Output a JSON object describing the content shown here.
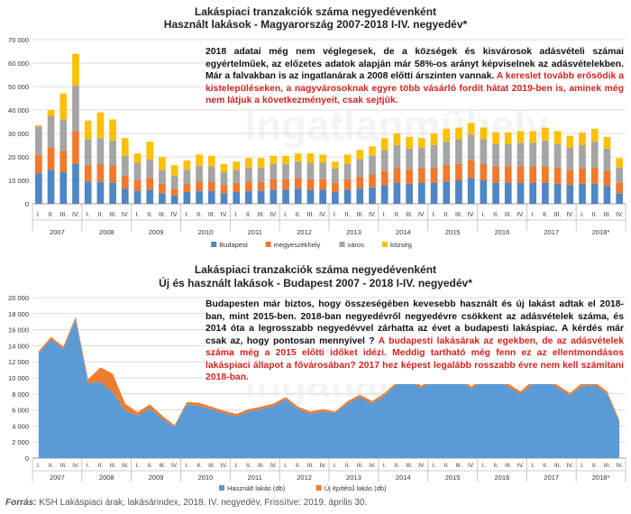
{
  "top": {
    "title_line1": "Lakáspiaci tranzakciók száma negyedévenként",
    "title_line2": "Használt lakások - Magyarország 2007-2018 I-IV. negyedév*",
    "watermark": "Ingatlanműhely",
    "note_black": "2018 adatai még nem véglegesek, de a községek és kisvárosok adásvételi számai egyértelműek, az előzetes adatok alapján már 58%-os arányt képviselnek az adásvételekben. Már a falvakban is az ingatlanárak a 2008 előtti árszinten vannak.",
    "note_red": " A kereslet tovább erősödik a kistelepüléseken, a nagyvárosoknak egyre több vásárló fordít hátat 2019-ben is, aminek még nem látjuk a következményeit, csak sejtjük."
  },
  "bottom": {
    "title_line1": "Lakáspiaci tranzakciók száma negyedévenként",
    "title_line2": "Új és használt lakások - Budapest 2007 - 2018 I-IV. negyedév*",
    "watermark": "Ingatlanműhely",
    "note_black": "Budapesten már biztos, hogy összeségében kevesebb használt és új lakást adtak el 2018-ban, mint 2015-ben. 2018-ban negyedévről negyedévre csökkent az adásvételek száma, és 2014 óta a legrosszabb negyedévvel zárhatta az évet a budapesti lakáspiac. A kérdés már csak az, hogy pontosan mennyivel ?",
    "note_red": " A budapesti lakásárak az egekben, de az adásvételek száma még a 2015 előtti időket idézi. Meddig tartható még fenn ez az ellentmondásos lakáspiaci állapot a fővárosában? 2017 hez képest legalább rosszabb évre nem kell számítani 2018-ban."
  },
  "source": {
    "prefix": "Forrás:",
    "text": " KSH Lakáspiaci árak, lakásárindex, 2018. IV. negyedév, Frissítve: 2019. április 30."
  },
  "chart_data": [
    {
      "type": "bar",
      "stacked": true,
      "title": "Lakáspiaci tranzakciók száma negyedévenként — Használt lakások - Magyarország 2007-2018 I-IV. negyedév*",
      "years": [
        "2007",
        "2008",
        "2009",
        "2010",
        "2011",
        "2012",
        "2013",
        "2014",
        "2015",
        "2016",
        "2017",
        "2018*"
      ],
      "quarter_labels": [
        "I.",
        "II.",
        "III.",
        "IV."
      ],
      "ylim": [
        0,
        70000
      ],
      "yticks": [
        0,
        10000,
        20000,
        30000,
        40000,
        50000,
        60000,
        70000
      ],
      "ytick_labels": [
        "0",
        "10 000",
        "20 000",
        "30 000",
        "40 000",
        "50 000",
        "60 000",
        "70 000"
      ],
      "grid": true,
      "legend_position": "bottom",
      "series": [
        {
          "name": "Budapest",
          "color": "#4f86c6",
          "values": [
            13000,
            14500,
            13500,
            17000,
            9500,
            9500,
            9000,
            6500,
            5500,
            6000,
            4500,
            3500,
            5000,
            5500,
            5500,
            4500,
            5000,
            5500,
            5500,
            6000,
            6000,
            6500,
            6000,
            6000,
            5000,
            6000,
            6500,
            7000,
            8000,
            9000,
            8500,
            9000,
            9000,
            9500,
            10000,
            11000,
            10000,
            9000,
            9000,
            9000,
            9000,
            9000,
            8500,
            8000,
            8500,
            8500,
            7500,
            4500
          ]
        },
        {
          "name": "megyeszékhely",
          "color": "#f0792d",
          "values": [
            8000,
            9500,
            9000,
            14000,
            7000,
            7500,
            7500,
            5500,
            4500,
            5000,
            4000,
            3000,
            3500,
            4000,
            4000,
            3500,
            4000,
            4000,
            4000,
            4500,
            4500,
            4500,
            4500,
            4500,
            4000,
            4500,
            5000,
            5500,
            6000,
            6500,
            6000,
            6000,
            6500,
            7000,
            7000,
            7500,
            7000,
            7000,
            7000,
            7000,
            7000,
            7000,
            7000,
            6500,
            6500,
            7000,
            6500,
            4500
          ]
        },
        {
          "name": "város",
          "color": "#a5a5a5",
          "values": [
            12000,
            13500,
            13500,
            19500,
            11000,
            11000,
            10500,
            8500,
            7500,
            8000,
            6000,
            5500,
            6000,
            6500,
            6500,
            5500,
            5500,
            6000,
            6000,
            6500,
            6500,
            7000,
            7000,
            7000,
            6000,
            6500,
            7500,
            8000,
            9000,
            9500,
            9000,
            9000,
            9500,
            10000,
            10500,
            11000,
            10500,
            9500,
            9500,
            10000,
            10000,
            11000,
            10000,
            9500,
            10000,
            11000,
            9500,
            6500
          ]
        },
        {
          "name": "község",
          "color": "#fec002",
          "values": [
            500,
            2500,
            11000,
            13500,
            8000,
            11000,
            9000,
            7500,
            4000,
            7500,
            5500,
            4500,
            4000,
            5000,
            4500,
            3500,
            3500,
            4000,
            4000,
            3500,
            3500,
            3500,
            4000,
            3500,
            3000,
            4000,
            4000,
            4000,
            5000,
            5000,
            5000,
            4000,
            5000,
            5500,
            5000,
            5000,
            5000,
            5000,
            5000,
            5000,
            5000,
            5500,
            5500,
            5000,
            5500,
            5500,
            5000,
            4000
          ]
        }
      ]
    },
    {
      "type": "area",
      "stacked": true,
      "title": "Lakáspiaci tranzakciók száma negyedévenként — Új és használt lakások - Budapest 2007 - 2018 I-IV. negyedév*",
      "years": [
        "2007",
        "2008",
        "2009",
        "2010",
        "2011",
        "2012",
        "2013",
        "2014",
        "2015",
        "2016",
        "2017",
        "2018*"
      ],
      "quarter_labels": [
        "I.",
        "II.",
        "III.",
        "IV."
      ],
      "ylim": [
        0,
        20000
      ],
      "yticks": [
        0,
        2000,
        4000,
        6000,
        8000,
        10000,
        12000,
        14000,
        16000,
        18000,
        20000
      ],
      "ytick_labels": [
        "0",
        "2 000",
        "4 000",
        "6 000",
        "8 000",
        "10 000",
        "12 000",
        "14 000",
        "16 000",
        "18 000",
        "20 000"
      ],
      "grid": true,
      "legend_position": "bottom",
      "series": [
        {
          "name": "Használt lakás (db)",
          "color": "#5b9bd5",
          "values": [
            13000,
            14800,
            13600,
            17300,
            9300,
            9500,
            8200,
            5900,
            5300,
            6200,
            4900,
            3900,
            6700,
            6500,
            6100,
            5600,
            5200,
            5800,
            6100,
            6500,
            7300,
            6100,
            5500,
            5800,
            5600,
            6800,
            7600,
            6800,
            7800,
            9200,
            9700,
            8700,
            10000,
            11000,
            9900,
            8600,
            9800,
            9800,
            8900,
            8000,
            9300,
            9600,
            8800,
            7800,
            9000,
            9100,
            8000,
            4500
          ]
        },
        {
          "name": "Új építésű lakás (db)",
          "color": "#ed7d31",
          "values": [
            300,
            300,
            300,
            300,
            500,
            1800,
            2300,
            900,
            400,
            500,
            400,
            200,
            300,
            400,
            300,
            300,
            300,
            300,
            300,
            300,
            300,
            300,
            300,
            300,
            200,
            300,
            300,
            300,
            300,
            300,
            300,
            300,
            300,
            300,
            400,
            300,
            300,
            400,
            400,
            300,
            400,
            400,
            300,
            300,
            400,
            400,
            300,
            200
          ]
        }
      ]
    }
  ]
}
